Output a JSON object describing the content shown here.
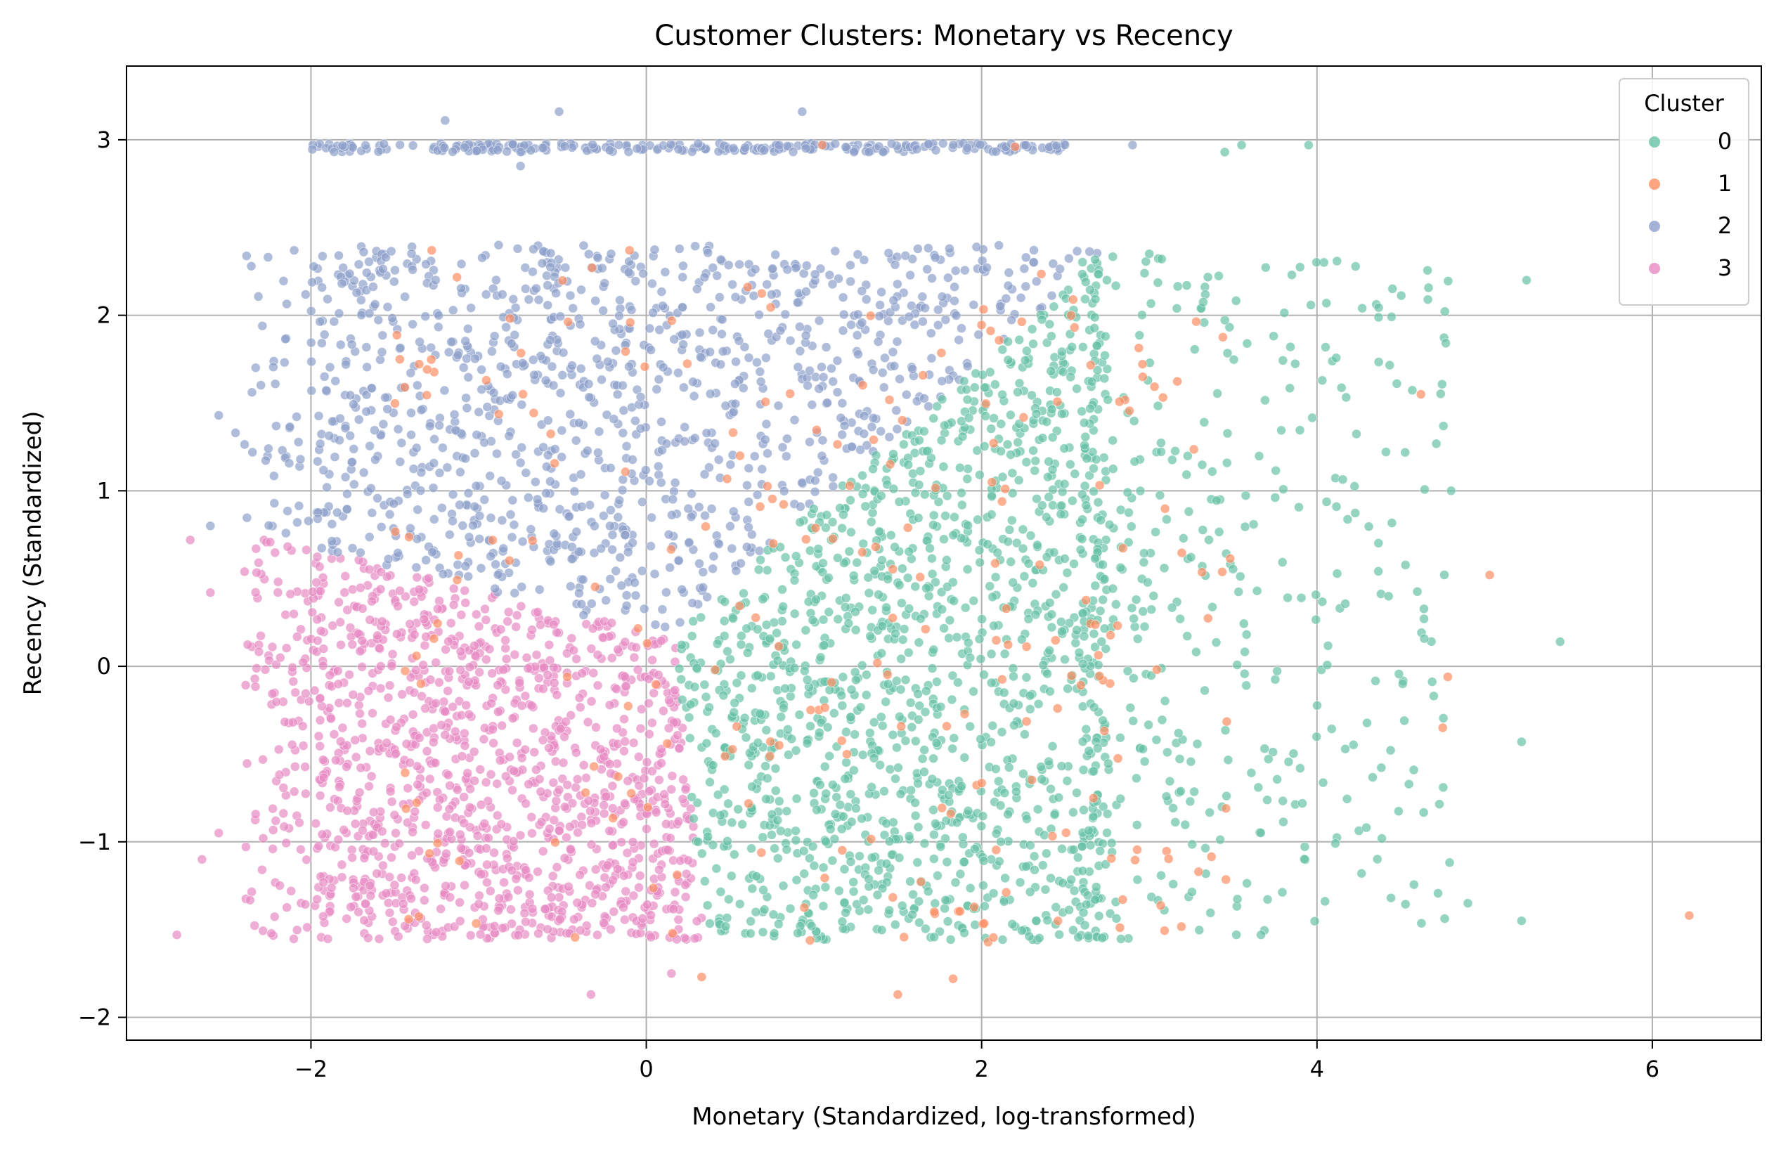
{
  "chart_data": {
    "type": "scatter",
    "title": "Customer Clusters: Monetary vs Recency",
    "xlabel": "Monetary (Standardized, log-transformed)",
    "ylabel": "Recency (Standardized)",
    "xlim": [
      -3.1,
      6.65
    ],
    "ylim": [
      -2.13,
      3.42
    ],
    "x_ticks": [
      -2,
      0,
      2,
      4,
      6
    ],
    "y_ticks": [
      -2,
      -1,
      0,
      1,
      2,
      3
    ],
    "x_tick_labels": [
      "−2",
      "0",
      "2",
      "4",
      "6"
    ],
    "y_tick_labels": [
      "−2",
      "−1",
      "0",
      "1",
      "2",
      "3"
    ],
    "grid": true,
    "legend": {
      "title": "Cluster",
      "placement": "top-right",
      "entries": [
        "0",
        "1",
        "2",
        "3"
      ]
    },
    "colors": {
      "0": "#66c2a5",
      "1": "#fc8d62",
      "2": "#8da0cb",
      "3": "#e78ac3"
    },
    "series": [
      {
        "name": "0",
        "description_regions": "dense wedge from x≈0.2 to 2.7, y −1.55 to 2.2; sparse tail to x≈5.5",
        "sample_points": [
          [
            5.25,
            2.2
          ],
          [
            5.45,
            0.14
          ],
          [
            5.22,
            -0.43
          ],
          [
            5.22,
            -1.45
          ],
          [
            4.9,
            -1.35
          ],
          [
            3.55,
            2.97
          ],
          [
            3.95,
            2.97
          ],
          [
            3.45,
            2.93
          ],
          [
            3.0,
            2.35
          ],
          [
            4.8,
            1.0
          ],
          [
            4.27,
            2.04
          ],
          [
            3.85,
            2.23
          ]
        ]
      },
      {
        "name": "1",
        "description_regions": "scattered across all regions, mostly within x 0 to 3.5",
        "sample_points": [
          [
            6.22,
            -1.42
          ],
          [
            5.03,
            0.52
          ],
          [
            4.62,
            1.55
          ],
          [
            4.78,
            -0.06
          ],
          [
            4.75,
            -0.35
          ],
          [
            1.5,
            -1.87
          ],
          [
            1.83,
            -1.78
          ],
          [
            -1.28,
            2.37
          ],
          [
            -0.1,
            2.37
          ],
          [
            1.05,
            2.97
          ],
          [
            2.2,
            2.96
          ],
          [
            0.33,
            -1.77
          ]
        ]
      },
      {
        "name": "2",
        "description_regions": "upper-left region y 0.2 to 2.4, x −2.5 to 2.7, plus band near y≈2.95",
        "sample_points": [
          [
            -1.2,
            3.11
          ],
          [
            -0.52,
            3.16
          ],
          [
            0.93,
            3.16
          ],
          [
            -0.75,
            2.85
          ],
          [
            2.9,
            2.97
          ],
          [
            -2.55,
            1.43
          ],
          [
            -2.6,
            0.8
          ],
          [
            -2.45,
            1.33
          ],
          [
            -2.1,
            2.37
          ]
        ]
      },
      {
        "name": "3",
        "description_regions": "lower-left region y −1.55 to 0.7, x −2.4 to 0.35",
        "sample_points": [
          [
            -2.72,
            0.72
          ],
          [
            -2.8,
            -1.53
          ],
          [
            -2.6,
            0.42
          ],
          [
            -2.65,
            -1.1
          ],
          [
            -0.33,
            -1.87
          ],
          [
            0.15,
            -1.75
          ],
          [
            -2.55,
            -0.95
          ]
        ]
      }
    ]
  }
}
